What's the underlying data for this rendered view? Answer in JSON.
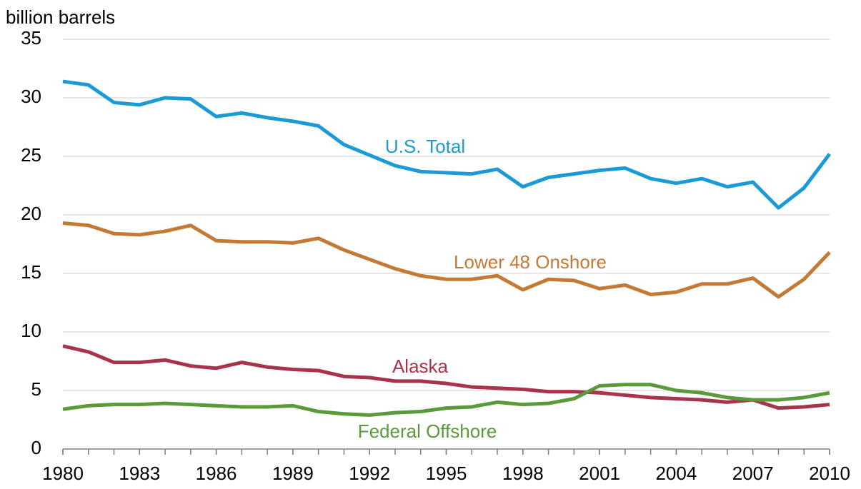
{
  "chart_data": {
    "type": "line",
    "y_label": "billion barrels",
    "x": [
      1980,
      1981,
      1982,
      1983,
      1984,
      1985,
      1986,
      1987,
      1988,
      1989,
      1990,
      1991,
      1992,
      1993,
      1994,
      1995,
      1996,
      1997,
      1998,
      1999,
      2000,
      2001,
      2002,
      2003,
      2004,
      2005,
      2006,
      2007,
      2008,
      2009,
      2010
    ],
    "series": [
      {
        "name": "U.S. Total",
        "color": "#1a9bd7",
        "values": [
          31.4,
          31.1,
          29.6,
          29.4,
          30.0,
          29.9,
          28.4,
          28.7,
          28.3,
          28.0,
          27.6,
          26.0,
          25.1,
          24.2,
          23.7,
          23.6,
          23.5,
          23.9,
          22.4,
          23.2,
          23.5,
          23.8,
          24.0,
          23.1,
          22.7,
          23.1,
          22.4,
          22.8,
          20.6,
          22.3,
          25.2
        ]
      },
      {
        "name": "Lower 48 Onshore",
        "color": "#c47a35",
        "values": [
          19.3,
          19.1,
          18.4,
          18.3,
          18.6,
          19.1,
          17.8,
          17.7,
          17.7,
          17.6,
          18.0,
          17.0,
          16.2,
          15.4,
          14.8,
          14.5,
          14.5,
          14.8,
          13.6,
          14.5,
          14.4,
          13.7,
          14.0,
          13.2,
          13.4,
          14.1,
          14.1,
          14.6,
          13.0,
          14.5,
          16.8
        ]
      },
      {
        "name": "Alaska",
        "color": "#a8334a",
        "values": [
          8.8,
          8.3,
          7.4,
          7.4,
          7.6,
          7.1,
          6.9,
          7.4,
          7.0,
          6.8,
          6.7,
          6.2,
          6.1,
          5.8,
          5.8,
          5.6,
          5.3,
          5.2,
          5.1,
          4.9,
          4.9,
          4.8,
          4.6,
          4.4,
          4.3,
          4.2,
          4.0,
          4.2,
          3.5,
          3.6,
          3.8
        ]
      },
      {
        "name": "Federal Offshore",
        "color": "#5a9a3a",
        "values": [
          3.4,
          3.7,
          3.8,
          3.8,
          3.9,
          3.8,
          3.7,
          3.6,
          3.6,
          3.7,
          3.2,
          3.0,
          2.9,
          3.1,
          3.2,
          3.5,
          3.6,
          4.0,
          3.8,
          3.9,
          4.3,
          5.4,
          5.5,
          5.5,
          5.0,
          4.8,
          4.4,
          4.2,
          4.2,
          4.4,
          4.8
        ]
      }
    ],
    "xlim": [
      1980,
      2010
    ],
    "xticks": [
      1980,
      1983,
      1986,
      1989,
      1992,
      1995,
      1998,
      2001,
      2004,
      2007,
      2010
    ],
    "ylim": [
      0,
      35
    ],
    "yticks": [
      0,
      5,
      10,
      15,
      20,
      25,
      30,
      35
    ],
    "grid": true
  }
}
